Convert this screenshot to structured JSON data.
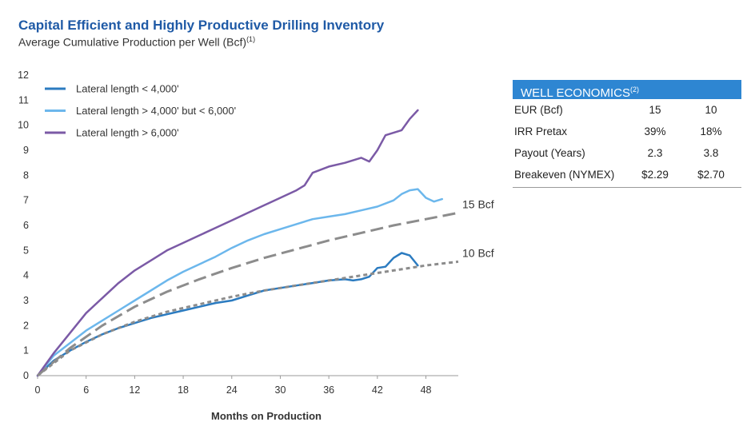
{
  "header": {
    "title": "Capital Efficient and Highly Productive Drilling Inventory",
    "subtitle": "Average Cumulative Production per Well (Bcf)",
    "subtitle_footnote": "(1)"
  },
  "well_economics": {
    "title": "WELL ECONOMICS",
    "title_footnote": "(2)",
    "rows": [
      {
        "label": "EUR (Bcf)",
        "v1": "15",
        "v2": "10"
      },
      {
        "label": "IRR Pretax",
        "v1": "39%",
        "v2": "18%"
      },
      {
        "label": "Payout (Years)",
        "v1": "2.3",
        "v2": "3.8"
      },
      {
        "label": "Breakeven (NYMEX)",
        "v1": "$2.29",
        "v2": "$2.70"
      }
    ]
  },
  "chart_data": {
    "type": "line",
    "title": "",
    "xlabel": "Months on Production",
    "ylabel": "",
    "xlim": [
      0,
      52
    ],
    "ylim": [
      0,
      12
    ],
    "xticks": [
      0,
      6,
      12,
      18,
      24,
      30,
      36,
      42,
      48
    ],
    "yticks": [
      0,
      1,
      2,
      3,
      4,
      5,
      6,
      7,
      8,
      9,
      10,
      11,
      12
    ],
    "grid": false,
    "legend_position": "top-left",
    "series": [
      {
        "name": "Lateral length < 4,000'",
        "color": "#2b7bc0",
        "style": "solid",
        "x": [
          0,
          2,
          4,
          6,
          8,
          10,
          12,
          14,
          16,
          18,
          20,
          22,
          24,
          26,
          28,
          30,
          32,
          34,
          36,
          38,
          39,
          40,
          41,
          42,
          43,
          44,
          45,
          46,
          47
        ],
        "y": [
          0,
          0.6,
          1.0,
          1.35,
          1.65,
          1.9,
          2.1,
          2.3,
          2.45,
          2.6,
          2.75,
          2.9,
          3.0,
          3.2,
          3.4,
          3.5,
          3.6,
          3.7,
          3.8,
          3.85,
          3.8,
          3.85,
          3.95,
          4.3,
          4.35,
          4.7,
          4.9,
          4.8,
          4.4
        ]
      },
      {
        "name": "Lateral length > 4,000' but < 6,000'",
        "color": "#6cb7ec",
        "style": "solid",
        "x": [
          0,
          2,
          4,
          6,
          8,
          10,
          12,
          14,
          16,
          18,
          20,
          22,
          24,
          26,
          28,
          30,
          32,
          34,
          36,
          38,
          40,
          42,
          44,
          45,
          46,
          47,
          48,
          49,
          50
        ],
        "y": [
          0,
          0.8,
          1.3,
          1.8,
          2.2,
          2.6,
          3.0,
          3.4,
          3.8,
          4.15,
          4.45,
          4.75,
          5.1,
          5.4,
          5.65,
          5.85,
          6.05,
          6.25,
          6.35,
          6.45,
          6.6,
          6.75,
          7.0,
          7.25,
          7.4,
          7.45,
          7.1,
          6.95,
          7.05
        ]
      },
      {
        "name": "Lateral length > 6,000'",
        "color": "#7b5aa6",
        "style": "solid",
        "x": [
          0,
          2,
          4,
          6,
          8,
          10,
          12,
          14,
          16,
          18,
          20,
          22,
          24,
          26,
          28,
          30,
          32,
          33,
          34,
          36,
          38,
          40,
          41,
          42,
          43,
          45,
          46,
          47
        ],
        "y": [
          0,
          0.9,
          1.7,
          2.5,
          3.1,
          3.7,
          4.2,
          4.6,
          5.0,
          5.3,
          5.6,
          5.9,
          6.2,
          6.5,
          6.8,
          7.1,
          7.4,
          7.6,
          8.1,
          8.35,
          8.5,
          8.7,
          8.55,
          9.0,
          9.6,
          9.8,
          10.25,
          10.6
        ]
      },
      {
        "name": "15 Bcf",
        "color": "#8c8c8c",
        "style": "long-dash",
        "x": [
          0,
          4,
          8,
          12,
          16,
          20,
          24,
          28,
          32,
          36,
          40,
          44,
          48,
          52
        ],
        "y": [
          0,
          1.1,
          2.0,
          2.75,
          3.35,
          3.85,
          4.3,
          4.7,
          5.05,
          5.4,
          5.7,
          6.0,
          6.25,
          6.5
        ]
      },
      {
        "name": "10 Bcf",
        "color": "#8c8c8c",
        "style": "short-dash",
        "x": [
          0,
          4,
          8,
          12,
          16,
          20,
          24,
          28,
          32,
          36,
          40,
          44,
          48,
          52
        ],
        "y": [
          0,
          1.0,
          1.65,
          2.15,
          2.55,
          2.85,
          3.15,
          3.4,
          3.6,
          3.8,
          4.0,
          4.2,
          4.4,
          4.55
        ]
      }
    ],
    "annotations": [
      "15 Bcf",
      "10 Bcf"
    ],
    "legend_entries": [
      "Lateral length < 4,000'",
      "Lateral length > 4,000' but < 6,000'",
      "Lateral length > 6,000'"
    ]
  }
}
